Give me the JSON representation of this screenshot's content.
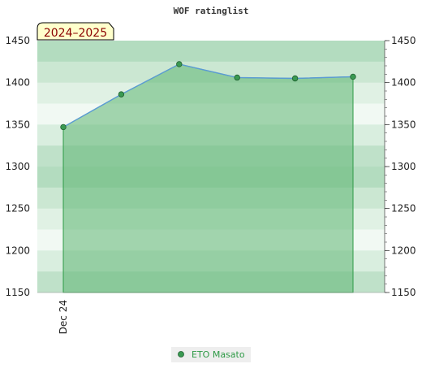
{
  "chart_data": {
    "type": "area",
    "title": "WOF ratinglist",
    "season_label": "2024–2025",
    "xlabel": "",
    "ylabel": "",
    "ylim": [
      1150,
      1450
    ],
    "y_ticks": [
      1150,
      1200,
      1250,
      1300,
      1350,
      1400,
      1450
    ],
    "x_tick_labels": [
      "Dec 24"
    ],
    "grid": "horizontal bands",
    "legend_position": "bottom-center",
    "series": [
      {
        "name": "ETO Masato",
        "values": [
          1347,
          1386,
          1422,
          1406,
          1405,
          1407
        ]
      }
    ]
  },
  "colors": {
    "fill": "#5fb673",
    "fill_edge": "#2e9a46",
    "line": "#5b9bd5",
    "marker": "#3a9a52",
    "legend_text": "#2e9a46",
    "season_bg": "#ffffcc",
    "season_text": "#8b0000"
  }
}
